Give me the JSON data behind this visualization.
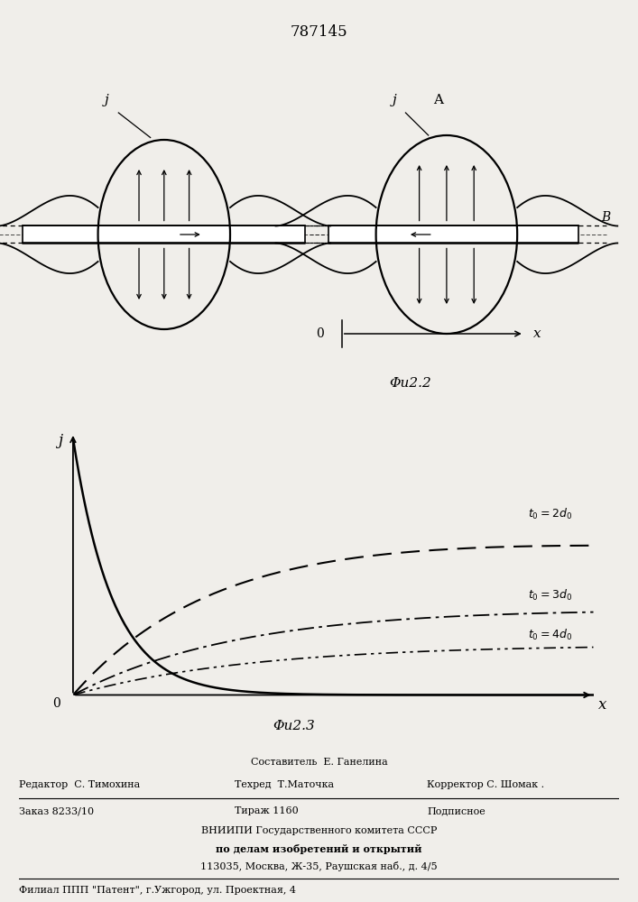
{
  "patent_number": "787145",
  "fig2_label": "Φu2.2",
  "fig3_label": "Φu2.3",
  "bg_color": "#f0eeea",
  "footer": {
    "sostavitel": "Составитель  Е. Ганелина",
    "redaktor": "Редактор  С. Тимохина",
    "tehred": "Техред  Т.Маточка",
    "korrektor": "Корректор С. Шомак .",
    "zakaz": "Заказ 8233/10",
    "tirazh": "Тираж 1160",
    "podpisnoe": "Подписное",
    "vnipi1": "ВНИИПИ Государственного комитета СССР",
    "vnipi2": "по делам изобретений и открытий",
    "address": "113035, Москва, Ж-35, Раушская наб., д. 4/5",
    "filial": "Филиал ППП \"Патент\", г.Ужгород, ул. Проектная, 4"
  }
}
